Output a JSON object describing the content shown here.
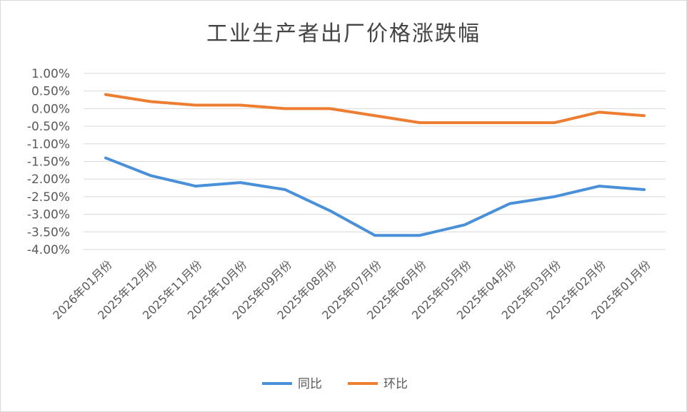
{
  "chart_data": {
    "type": "line",
    "title": "工业生产者出厂价格涨跌幅",
    "xlabel": "",
    "ylabel": "",
    "categories": [
      "2026年01月份",
      "2025年12月份",
      "2025年11月份",
      "2025年10月份",
      "2025年09月份",
      "2025年08月份",
      "2025年07月份",
      "2025年06月份",
      "2025年05月份",
      "2025年04月份",
      "2025年03月份",
      "2025年02月份",
      "2025年01月份"
    ],
    "series": [
      {
        "name": "同比",
        "color": "#4a90d9",
        "values": [
          -1.4,
          -1.9,
          -2.2,
          -2.1,
          -2.3,
          -2.9,
          -3.6,
          -3.6,
          -3.3,
          -2.7,
          -2.5,
          -2.2,
          -2.3
        ]
      },
      {
        "name": "环比",
        "color": "#ed7d31",
        "values": [
          0.4,
          0.2,
          0.1,
          0.1,
          0.0,
          0.0,
          -0.2,
          -0.4,
          -0.4,
          -0.4,
          -0.4,
          -0.1,
          -0.2
        ]
      }
    ],
    "ylim": [
      -4.0,
      1.0
    ],
    "yticks": [
      "1.00%",
      "0.50%",
      "0.00%",
      "-0.50%",
      "-1.00%",
      "-1.50%",
      "-2.00%",
      "-2.50%",
      "-3.00%",
      "-3.50%",
      "-4.00%"
    ],
    "ytick_values": [
      1.0,
      0.5,
      0.0,
      -0.5,
      -1.0,
      -1.5,
      -2.0,
      -2.5,
      -3.0,
      -3.5,
      -4.0
    ],
    "grid": true,
    "legend": "bottom"
  }
}
